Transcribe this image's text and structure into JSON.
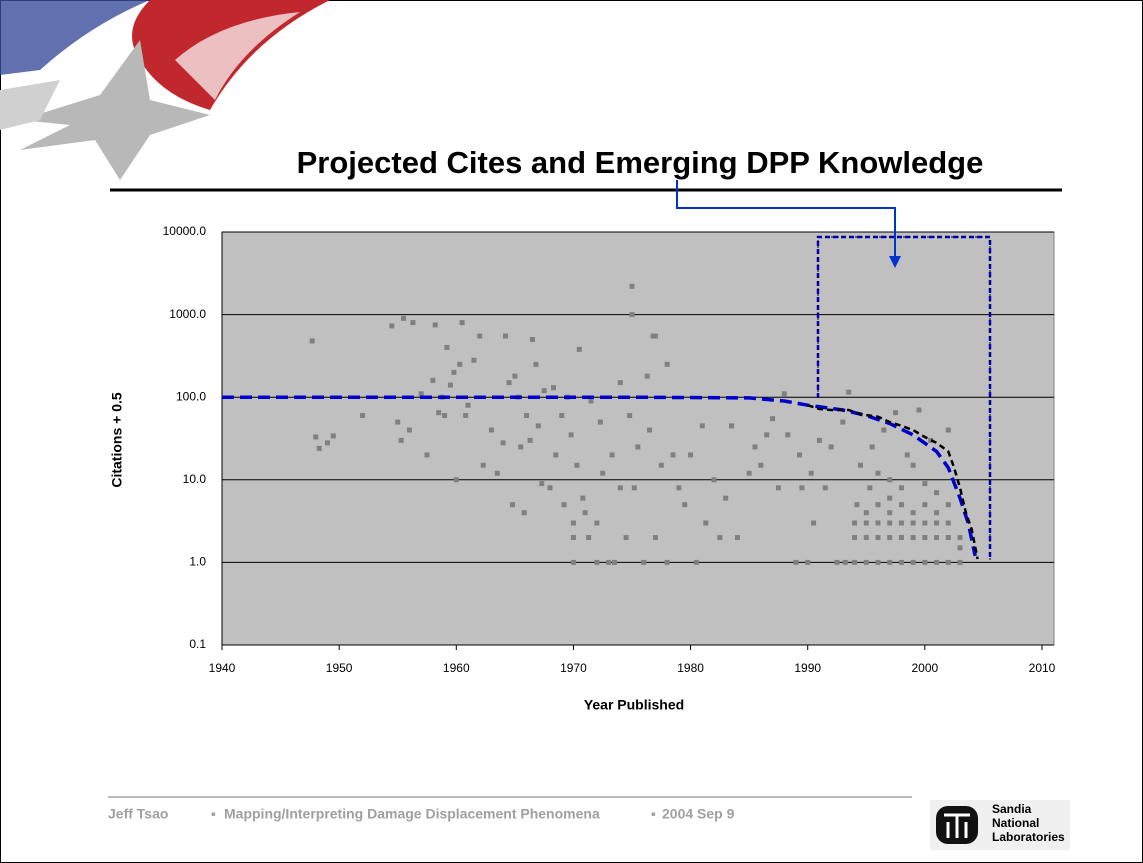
{
  "chart_data": {
    "type": "scatter",
    "title": "Projected Cites and Emerging DPP Knowledge",
    "xlabel": "Year Published",
    "ylabel": "Citations + 0.5",
    "xlim": [
      1940,
      2010
    ],
    "xticks": [
      1940,
      1950,
      1960,
      1970,
      1980,
      1990,
      2000,
      2010
    ],
    "ylim": [
      0.1,
      10000
    ],
    "yticks": [
      {
        "value": 10000,
        "label": "10000.0"
      },
      {
        "value": 1000,
        "label": "1000.0"
      },
      {
        "value": 100,
        "label": "100.0"
      },
      {
        "value": 10,
        "label": "10.0"
      },
      {
        "value": 1,
        "label": "1.0"
      },
      0.1
    ],
    "log_y": true,
    "grid": true,
    "series": [
      {
        "type": "scatter",
        "color": "#808080",
        "x": [
          1947.7,
          1948,
          1948.3,
          1949,
          1949.5,
          1952,
          1954.5,
          1955,
          1955.3,
          1955.5,
          1956,
          1956.3,
          1957,
          1957.5,
          1958,
          1958.2,
          1958.5,
          1958.8,
          1959,
          1959.2,
          1959.5,
          1959.8,
          1960,
          1960.3,
          1960.5,
          1960.8,
          1961,
          1961.5,
          1962,
          1962.3,
          1963,
          1963.5,
          1964,
          1964.2,
          1964.5,
          1964.8,
          1965,
          1965.3,
          1965.5,
          1965.8,
          1966,
          1966.3,
          1966.5,
          1966.8,
          1967,
          1967.3,
          1967.5,
          1968,
          1968.3,
          1968.5,
          1969,
          1969.2,
          1969.5,
          1969.8,
          1970,
          1970,
          1970,
          1970.3,
          1970.5,
          1970.8,
          1971,
          1971.3,
          1971.5,
          1972,
          1972,
          1972.3,
          1972.5,
          1973,
          1973.3,
          1973.5,
          1974,
          1974,
          1974.5,
          1974.8,
          1975,
          1975,
          1975.2,
          1975.5,
          1976,
          1976.3,
          1976.5,
          1976.8,
          1977,
          1977,
          1977.5,
          1978,
          1978,
          1978.5,
          1979,
          1979.5,
          1980,
          1980.5,
          1981,
          1981.3,
          1982,
          1982.5,
          1983,
          1983.5,
          1984,
          1985,
          1985.5,
          1986,
          1986.5,
          1987,
          1987.5,
          1988,
          1988.3,
          1989,
          1989.3,
          1989.5,
          1990,
          1990.3,
          1990.5,
          1991,
          1991.5,
          1992,
          1992.5,
          1993,
          1993.2,
          1993.5,
          1994,
          1994,
          1994,
          1994.2,
          1994.5,
          1995,
          1995,
          1995,
          1995,
          1995.3,
          1995.5,
          1996,
          1996,
          1996,
          1996,
          1996,
          1996.5,
          1997,
          1997,
          1997,
          1997,
          1997,
          1997,
          1997.5,
          1998,
          1998,
          1998,
          1998,
          1998,
          1998.5,
          1999,
          1999,
          1999,
          1999,
          1999,
          1999.5,
          2000,
          2000,
          2000,
          2000,
          2000,
          2000.5,
          2001,
          2001,
          2001,
          2001,
          2001,
          2002,
          2002,
          2002,
          2002,
          2002,
          2003,
          2003,
          2003
        ],
        "values": [
          480,
          33,
          24,
          28,
          34,
          60,
          730,
          50,
          30,
          900,
          40,
          800,
          110,
          20,
          160,
          750,
          65,
          100,
          60,
          400,
          140,
          200,
          10,
          250,
          800,
          60,
          80,
          280,
          550,
          15,
          40,
          12,
          28,
          550,
          150,
          5,
          180,
          100,
          25,
          4,
          60,
          30,
          500,
          250,
          45,
          9,
          120,
          8,
          130,
          20,
          60,
          5,
          100,
          35,
          1,
          2,
          3,
          15,
          380,
          6,
          4,
          2,
          90,
          1,
          3,
          50,
          12,
          1,
          20,
          1,
          150,
          8,
          2,
          60,
          2200,
          1000,
          8,
          25,
          1,
          180,
          40,
          550,
          550,
          2,
          15,
          250,
          1,
          20,
          8,
          5,
          20,
          1,
          45,
          3,
          10,
          2,
          6,
          45,
          2,
          12,
          25,
          15,
          35,
          55,
          8,
          110,
          35,
          1,
          20,
          8,
          1,
          12,
          3,
          30,
          8,
          25,
          1,
          50,
          1,
          115,
          1,
          2,
          3,
          5,
          15,
          1,
          2,
          3,
          4,
          8,
          25,
          1,
          2,
          3,
          5,
          12,
          40,
          1,
          2,
          3,
          4,
          6,
          10,
          65,
          1,
          2,
          3,
          5,
          8,
          20,
          1,
          2,
          3,
          4,
          15,
          70,
          1,
          2,
          3,
          5,
          9,
          30,
          1,
          2,
          3,
          4,
          7,
          1,
          2,
          3,
          5,
          40,
          1,
          2,
          1.5
        ]
      },
      {
        "type": "line",
        "color": "#0000cc",
        "x": [
          1940,
          1975,
          1985,
          1988,
          1990,
          1993,
          1995,
          1997,
          1999,
          2001,
          2002,
          2003,
          2003.7,
          2004.3
        ],
        "values": [
          100,
          100,
          98,
          90,
          80,
          70,
          60,
          48,
          35,
          22,
          14,
          6,
          3,
          1.2
        ]
      },
      {
        "type": "line",
        "color": "#000000",
        "x": [
          1990,
          1991,
          1992,
          1993.5,
          1994.5,
          1996,
          1997,
          1998,
          1999,
          2000,
          2001,
          2002,
          2002.5,
          2003,
          2003.5,
          2004,
          2004.5
        ],
        "values": [
          80,
          72,
          70,
          70,
          62,
          58,
          50,
          45,
          40,
          33,
          28,
          22,
          14,
          8,
          4,
          2.5,
          1.1
        ]
      }
    ]
  },
  "footer": {
    "author": "Jeff Tsao",
    "talk": "Mapping/Interpreting Damage Displacement Phenomena",
    "date": "2004 Sep 9",
    "logo": [
      "Sandia",
      "National",
      "Laboratories"
    ]
  }
}
